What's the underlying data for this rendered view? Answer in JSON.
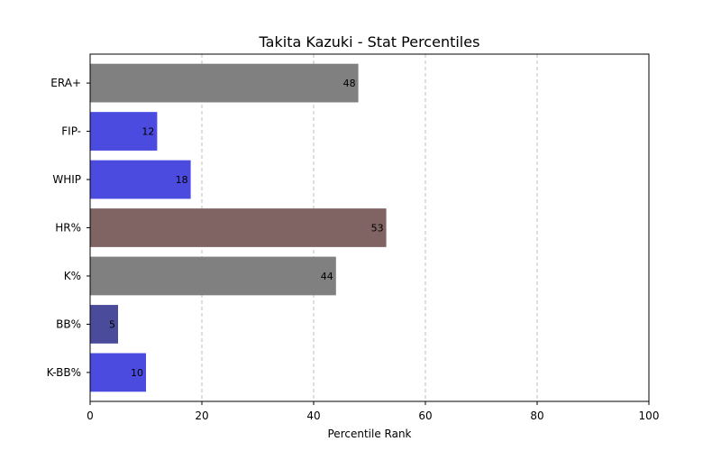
{
  "chart_data": {
    "type": "bar",
    "orientation": "horizontal",
    "title": "Takita Kazuki - Stat Percentiles",
    "xlabel": "Percentile Rank",
    "ylabel": "",
    "xlim": [
      0,
      100
    ],
    "xticks": [
      0,
      20,
      40,
      60,
      80,
      100
    ],
    "grid": "x-dashed",
    "categories": [
      "ERA+",
      "FIP-",
      "WHIP",
      "HR%",
      "K%",
      "BB%",
      "K-BB%"
    ],
    "values": [
      48,
      12,
      18,
      53,
      44,
      5,
      10
    ],
    "colors": [
      "#808080",
      "#4b4bdf",
      "#4b4bdf",
      "#806464",
      "#808080",
      "#4b4b9c",
      "#4b4bdf"
    ]
  }
}
